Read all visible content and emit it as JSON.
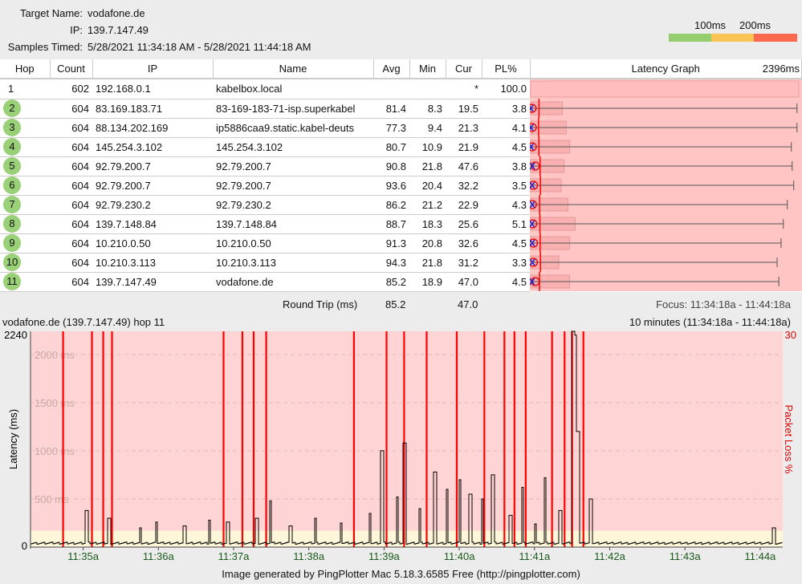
{
  "header": {
    "target_label": "Target Name:",
    "target": "vodafone.de",
    "ip_label": "IP:",
    "ip": "139.7.147.49",
    "samples_label": "Samples Timed:",
    "samples": "5/28/2021 11:34:18 AM - 5/28/2021 11:44:18 AM"
  },
  "legend": {
    "l1": "100ms",
    "l2": "200ms",
    "colors": [
      "#95ce6e",
      "#fcc454",
      "#fb6a4f"
    ]
  },
  "table": {
    "columns": [
      "Hop",
      "Count",
      "IP",
      "Name",
      "Avg",
      "Min",
      "Cur",
      "PL%",
      "Latency Graph",
      "2396ms"
    ],
    "graph_max_ms": 2396,
    "rows": [
      {
        "hop": "1",
        "count": "602",
        "ip": "192.168.0.1",
        "name": "kabelbox.local",
        "avg": "",
        "min": "",
        "cur": "*",
        "pl": "100.0"
      },
      {
        "hop": "2",
        "count": "604",
        "ip": "83.169.183.71",
        "name": "83-169-183-71-isp.superkabel",
        "avg": "81.4",
        "min": "8.3",
        "cur": "19.5",
        "pl": "3.8",
        "max": 2366,
        "box": 280
      },
      {
        "hop": "3",
        "count": "604",
        "ip": "88.134.202.169",
        "name": "ip5886caa9.static.kabel-deuts",
        "avg": "77.3",
        "min": "9.4",
        "cur": "21.3",
        "pl": "4.1",
        "max": 2366,
        "box": 315
      },
      {
        "hop": "4",
        "count": "604",
        "ip": "145.254.3.102",
        "name": "145.254.3.102",
        "avg": "80.7",
        "min": "10.9",
        "cur": "21.9",
        "pl": "4.5",
        "max": 2316,
        "box": 345
      },
      {
        "hop": "5",
        "count": "604",
        "ip": "92.79.200.7",
        "name": "92.79.200.7",
        "avg": "90.8",
        "min": "21.8",
        "cur": "47.6",
        "pl": "3.8",
        "max": 2323,
        "box": 295
      },
      {
        "hop": "6",
        "count": "604",
        "ip": "92.79.200.7",
        "name": "92.79.200.7",
        "avg": "93.6",
        "min": "20.4",
        "cur": "32.2",
        "pl": "3.5",
        "max": 2337,
        "box": 270
      },
      {
        "hop": "7",
        "count": "604",
        "ip": "92.79.230.2",
        "name": "92.79.230.2",
        "avg": "86.2",
        "min": "21.2",
        "cur": "22.9",
        "pl": "4.3",
        "max": 2280,
        "box": 330
      },
      {
        "hop": "8",
        "count": "604",
        "ip": "139.7.148.84",
        "name": "139.7.148.84",
        "avg": "88.7",
        "min": "18.3",
        "cur": "25.6",
        "pl": "5.1",
        "max": 2245,
        "box": 395
      },
      {
        "hop": "9",
        "count": "604",
        "ip": "10.210.0.50",
        "name": "10.210.0.50",
        "avg": "91.3",
        "min": "20.8",
        "cur": "32.6",
        "pl": "4.5",
        "max": 2225,
        "box": 345
      },
      {
        "hop": "10",
        "count": "604",
        "ip": "10.210.3.113",
        "name": "10.210.3.113",
        "avg": "94.3",
        "min": "21.8",
        "cur": "31.2",
        "pl": "3.3",
        "max": 2190,
        "box": 250
      },
      {
        "hop": "11",
        "count": "604",
        "ip": "139.7.147.49",
        "name": "vodafone.de",
        "avg": "85.2",
        "min": "18.9",
        "cur": "47.0",
        "pl": "4.5",
        "max": 2205,
        "box": 345
      }
    ]
  },
  "roundtrip": {
    "label": "Round Trip (ms)",
    "avg": "85.2",
    "cur": "47.0",
    "focus": "Focus: 11:34:18a - 11:44:18a"
  },
  "chart_data": {
    "type": "line",
    "title": "vodafone.de (139.7.147.49) hop 11",
    "range_label": "10 minutes (11:34:18a - 11:44:18a)",
    "ylabel": "Latency (ms)",
    "y2label": "Packet Loss %",
    "ylim": [
      0,
      2240
    ],
    "y2max": "30",
    "ytop": "2240",
    "yzero": "0",
    "grid_labels": [
      "500 ms",
      "1000 ms",
      "1500 ms",
      "2000 ms"
    ],
    "grid_values": [
      500,
      1000,
      1500,
      2000
    ],
    "xlim": [
      "11:34:18",
      "11:44:18"
    ],
    "xticks": [
      "11:35a",
      "11:36a",
      "11:37a",
      "11:38a",
      "11:39a",
      "11:40a",
      "11:41a",
      "11:42a",
      "11:43a",
      "11:44a"
    ],
    "baseline_ms": 40,
    "latency_spikes": [
      [
        "11:35:02",
        380
      ],
      [
        "11:35:20",
        300
      ],
      [
        "11:35:45",
        200
      ],
      [
        "11:35:58",
        260
      ],
      [
        "11:36:20",
        220
      ],
      [
        "11:36:40",
        280
      ],
      [
        "11:36:55",
        260
      ],
      [
        "11:37:18",
        300
      ],
      [
        "11:37:29",
        480
      ],
      [
        "11:37:45",
        220
      ],
      [
        "11:38:05",
        300
      ],
      [
        "11:38:25",
        250
      ],
      [
        "11:38:48",
        350
      ],
      [
        "11:38:58",
        1000
      ],
      [
        "11:39:10",
        520
      ],
      [
        "11:39:16",
        1080
      ],
      [
        "11:39:28",
        400
      ],
      [
        "11:39:40",
        780
      ],
      [
        "11:39:50",
        600
      ],
      [
        "11:40:00",
        700
      ],
      [
        "11:40:08",
        550
      ],
      [
        "11:40:18",
        500
      ],
      [
        "11:40:26",
        750
      ],
      [
        "11:40:40",
        330
      ],
      [
        "11:40:50",
        620
      ],
      [
        "11:41:00",
        240
      ],
      [
        "11:41:08",
        720
      ],
      [
        "11:41:20",
        380
      ],
      [
        "11:41:30",
        2240
      ],
      [
        "11:41:32",
        2200
      ],
      [
        "11:41:34",
        1200
      ],
      [
        "11:41:44",
        500
      ],
      [
        "11:44:10",
        200
      ]
    ],
    "packet_loss_times": [
      "11:34:44",
      "11:35:07",
      "11:35:16",
      "11:35:23",
      "11:36:52",
      "11:37:07",
      "11:37:16",
      "11:37:26",
      "11:38:36",
      "11:39:02",
      "11:39:16",
      "11:39:34",
      "11:39:58",
      "11:40:20",
      "11:40:36",
      "11:40:44",
      "11:40:53",
      "11:41:14",
      "11:41:24",
      "11:41:30",
      "11:41:39"
    ],
    "colors": {
      "background": "#ffd4d4",
      "low_band": "#fdf6d8",
      "loss": "#ff0000",
      "line": "#000000"
    }
  },
  "footer": "Image generated by PingPlotter Mac 5.18.3.6585 Free (http://pingplotter.com)"
}
